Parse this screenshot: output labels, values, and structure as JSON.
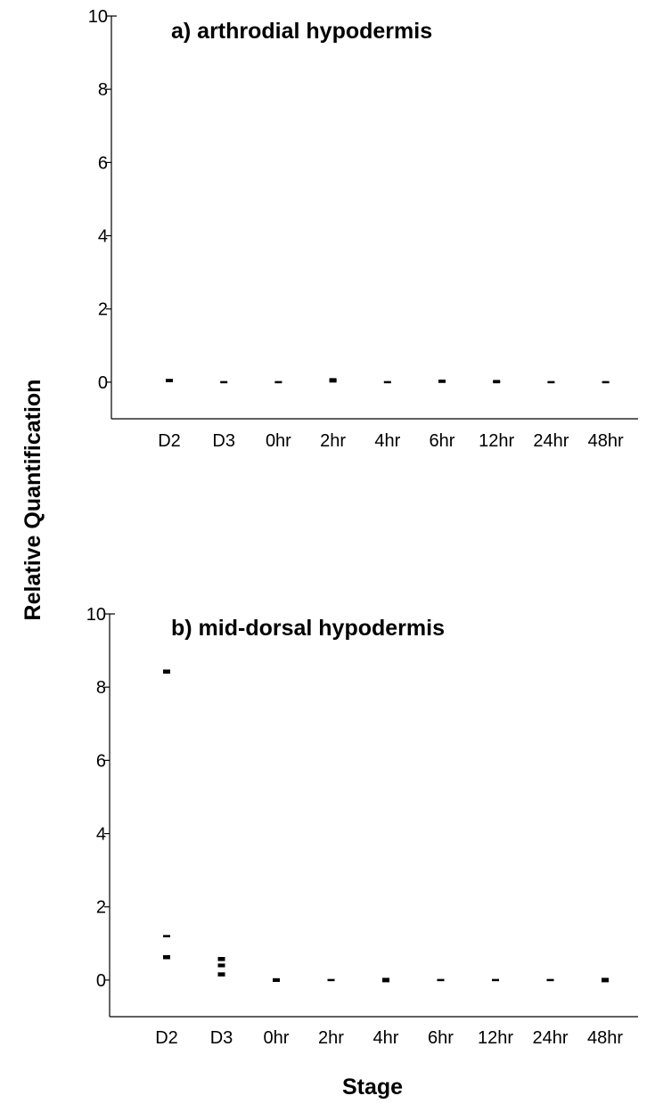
{
  "figure": {
    "ylabel": "Relative Quantification",
    "xlabel": "Stage"
  },
  "chart_data": [
    {
      "type": "scatter",
      "title": "a) arthrodial hypodermis",
      "categories": [
        "D2",
        "D3",
        "0hr",
        "2hr",
        "4hr",
        "6hr",
        "12hr",
        "24hr",
        "48hr"
      ],
      "ylim": [
        -1,
        10
      ],
      "yticks": [
        0,
        2,
        4,
        6,
        8,
        10
      ],
      "grid": false,
      "points": [
        {
          "x": "D2",
          "y": 0.03
        },
        {
          "x": "D2",
          "y": 0.06
        },
        {
          "x": "D3",
          "y": 0.0
        },
        {
          "x": "0hr",
          "y": 0.0
        },
        {
          "x": "2hr",
          "y": 0.02
        },
        {
          "x": "2hr",
          "y": 0.05
        },
        {
          "x": "2hr",
          "y": 0.08
        },
        {
          "x": "4hr",
          "y": 0.0
        },
        {
          "x": "6hr",
          "y": 0.01
        },
        {
          "x": "6hr",
          "y": 0.04
        },
        {
          "x": "12hr",
          "y": 0.0
        },
        {
          "x": "12hr",
          "y": 0.03
        },
        {
          "x": "24hr",
          "y": 0.0
        },
        {
          "x": "48hr",
          "y": 0.0
        }
      ]
    },
    {
      "type": "scatter",
      "title": "b) mid-dorsal hypodermis",
      "categories": [
        "D2",
        "D3",
        "0hr",
        "2hr",
        "4hr",
        "6hr",
        "12hr",
        "24hr",
        "48hr"
      ],
      "ylim": [
        -1,
        10
      ],
      "yticks": [
        0,
        2,
        4,
        6,
        8,
        10
      ],
      "grid": false,
      "points": [
        {
          "x": "D2",
          "y": 8.45
        },
        {
          "x": "D2",
          "y": 8.4
        },
        {
          "x": "D2",
          "y": 1.2
        },
        {
          "x": "D2",
          "y": 0.65
        },
        {
          "x": "D2",
          "y": 0.6
        },
        {
          "x": "D3",
          "y": 0.6
        },
        {
          "x": "D3",
          "y": 0.55
        },
        {
          "x": "D3",
          "y": 0.42
        },
        {
          "x": "D3",
          "y": 0.38
        },
        {
          "x": "D3",
          "y": 0.18
        },
        {
          "x": "D3",
          "y": 0.13
        },
        {
          "x": "0hr",
          "y": 0.02
        },
        {
          "x": "0hr",
          "y": -0.02
        },
        {
          "x": "2hr",
          "y": 0.0
        },
        {
          "x": "4hr",
          "y": 0.03
        },
        {
          "x": "4hr",
          "y": 0.0
        },
        {
          "x": "4hr",
          "y": -0.03
        },
        {
          "x": "6hr",
          "y": 0.0
        },
        {
          "x": "12hr",
          "y": 0.0
        },
        {
          "x": "24hr",
          "y": 0.0
        },
        {
          "x": "48hr",
          "y": 0.03
        },
        {
          "x": "48hr",
          "y": 0.0
        },
        {
          "x": "48hr",
          "y": -0.03
        }
      ]
    }
  ]
}
